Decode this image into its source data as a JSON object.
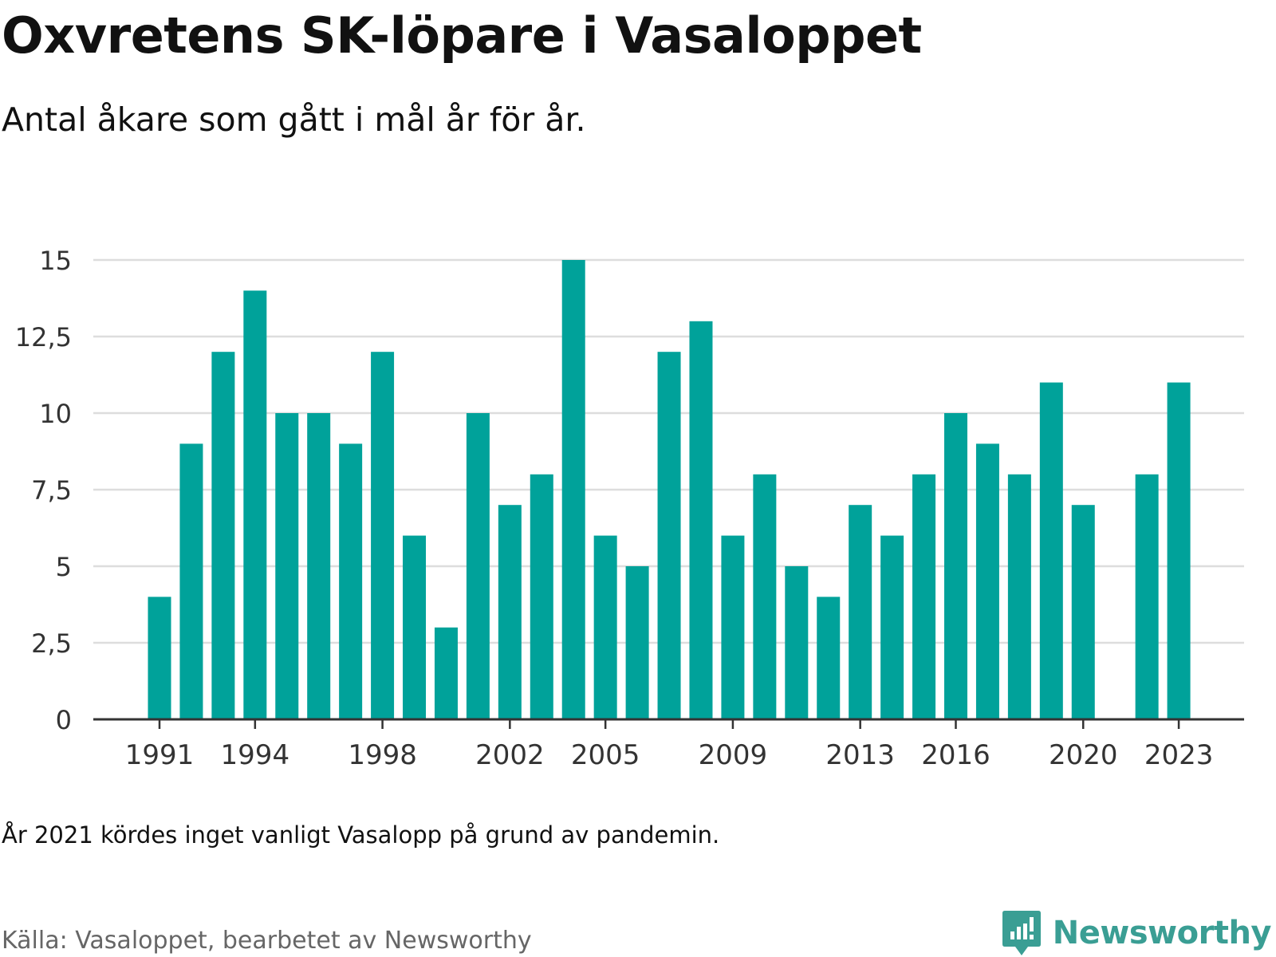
{
  "header": {
    "title": "Oxvretens SK-löpare i Vasaloppet",
    "subtitle": "Antal åkare som gått i mål år för år."
  },
  "footer": {
    "note": "År 2021 kördes inget vanligt Vasalopp på grund av pandemin.",
    "source": "Källa: Vasaloppet, bearbetet av Newsworthy",
    "brand": "Newsworthy"
  },
  "colors": {
    "bar": "#00a29a",
    "grid": "#dddddd",
    "axis": "#333333",
    "brand": "#3a9e94"
  },
  "icons": {
    "brand_logo": "newsworthy-logo-icon"
  },
  "chart_data": {
    "type": "bar",
    "title": "Oxvretens SK-löpare i Vasaloppet",
    "subtitle": "Antal åkare som gått i mål år för år.",
    "xlabel": "",
    "ylabel": "",
    "ylim": [
      0,
      15
    ],
    "yticks": [
      {
        "value": 0,
        "label": "0"
      },
      {
        "value": 2.5,
        "label": "2,5"
      },
      {
        "value": 5,
        "label": "5"
      },
      {
        "value": 7.5,
        "label": "7,5"
      },
      {
        "value": 10,
        "label": "10"
      },
      {
        "value": 12.5,
        "label": "12,5"
      },
      {
        "value": 15,
        "label": "15"
      }
    ],
    "xticks": [
      1991,
      1994,
      1998,
      2002,
      2005,
      2009,
      2013,
      2016,
      2020,
      2023
    ],
    "grid": true,
    "legend": "none",
    "categories": [
      1991,
      1992,
      1993,
      1994,
      1995,
      1996,
      1997,
      1998,
      1999,
      2000,
      2001,
      2002,
      2003,
      2004,
      2005,
      2006,
      2007,
      2008,
      2009,
      2010,
      2011,
      2012,
      2013,
      2014,
      2015,
      2016,
      2017,
      2018,
      2019,
      2020,
      2021,
      2022,
      2023
    ],
    "values": [
      4,
      9,
      12,
      14,
      10,
      10,
      9,
      12,
      6,
      3,
      10,
      7,
      8,
      15,
      6,
      5,
      12,
      13,
      6,
      8,
      5,
      4,
      7,
      6,
      8,
      10,
      9,
      8,
      11,
      7,
      null,
      8,
      11
    ]
  }
}
